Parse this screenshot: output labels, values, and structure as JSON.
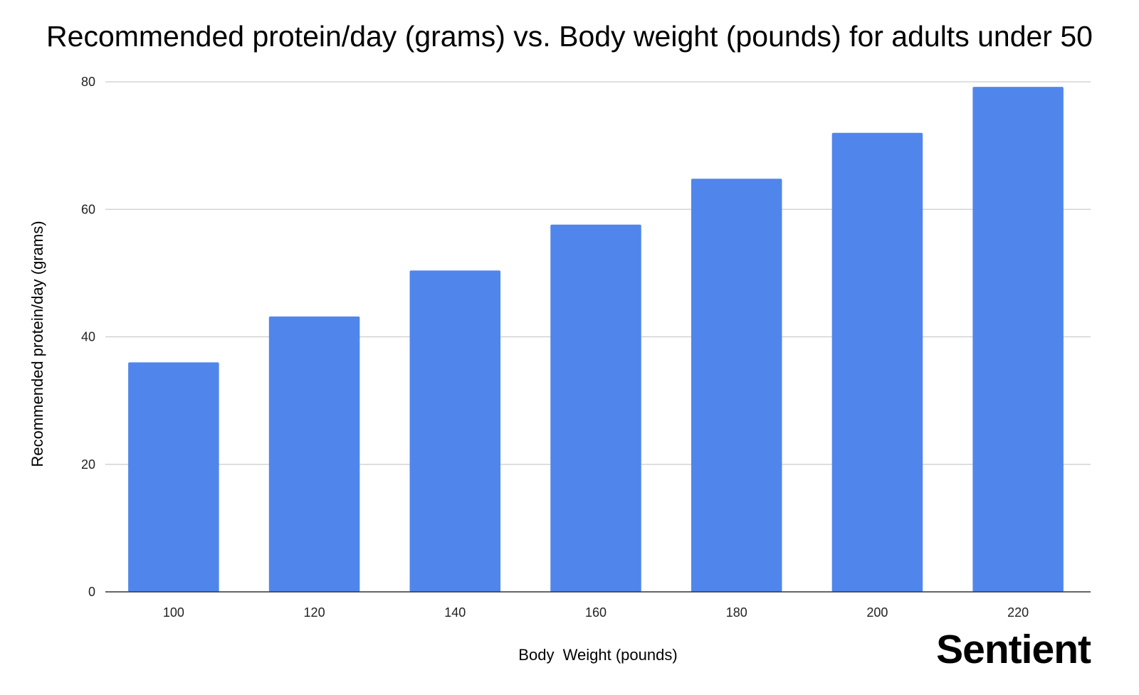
{
  "chart_data": {
    "type": "bar",
    "title": "Recommended protein/day (grams) vs. Body weight (pounds) for adults under 50",
    "xlabel": "Body  Weight (pounds)",
    "ylabel": "Recommended protein/day (grams)",
    "categories": [
      "100",
      "120",
      "140",
      "160",
      "180",
      "200",
      "220"
    ],
    "values": [
      36,
      43.2,
      50.4,
      57.6,
      64.8,
      72,
      79.2
    ],
    "ylim": [
      0,
      80
    ],
    "yticks": [
      "0",
      "20",
      "40",
      "60",
      "80"
    ],
    "grid": true,
    "legend": "none",
    "bar_color": "#5086ec",
    "grid_color": "#cccccc",
    "axis_color": "#333333"
  },
  "brand": {
    "name": "Sentient"
  }
}
